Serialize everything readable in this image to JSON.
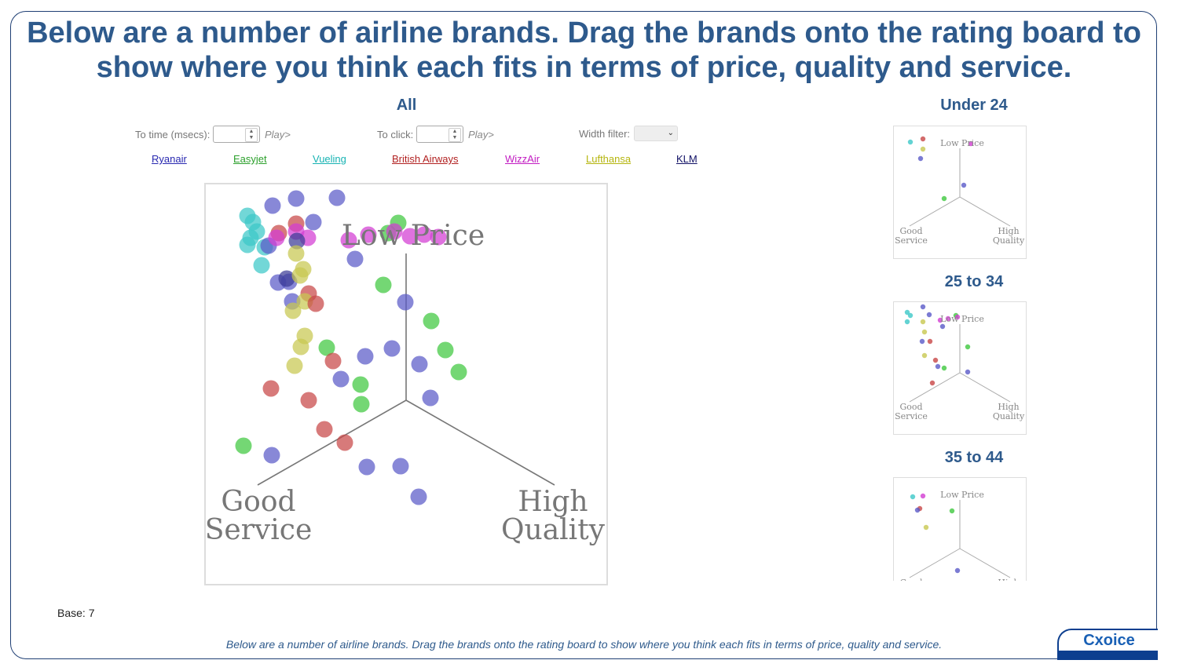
{
  "title": "Below are a number of airline brands. Drag the brands onto the rating board to show where you think each fits in terms of price, quality and service.",
  "main_section": {
    "heading": "All",
    "time_label": "To time (msecs):",
    "time_value": "",
    "click_label": "To click:",
    "click_value": "",
    "play_label": "Play>",
    "width_filter_label": "Width filter:",
    "width_filter_value": ""
  },
  "brands": [
    {
      "name": "Ryanair",
      "color": "#2828b0"
    },
    {
      "name": "Easyjet",
      "color": "#2ca02c"
    },
    {
      "name": "Vueling",
      "color": "#17b3b3"
    },
    {
      "name": "British Airways",
      "color": "#b22222"
    },
    {
      "name": "WizzAir",
      "color": "#c21cc2"
    },
    {
      "name": "Lufthansa",
      "color": "#b5b50e"
    },
    {
      "name": "KLM",
      "color": "#111166"
    }
  ],
  "axes": {
    "top": "Low Price",
    "left_line1": "Good",
    "left_line2": "Service",
    "right_line1": "High",
    "right_line2": "Quality"
  },
  "segments": [
    {
      "heading": "Under 24"
    },
    {
      "heading": "25 to 34"
    },
    {
      "heading": "35 to 44"
    }
  ],
  "base_label": "Base: 7",
  "footer_text": "Below are a number of airline brands. Drag the brands onto the rating board to show where you think each fits in terms of price, quality and service.",
  "logo_text": "Cxoice",
  "colors": {
    "title": "#2e5a8c",
    "frame": "#1f3f74",
    "dot_blue": "#5a5ac8",
    "dot_green": "#3ec83e",
    "dot_cyan": "#3cc8c8",
    "dot_red": "#c84646",
    "dot_magenta": "#d23cd2",
    "dot_yellow": "#c8c850",
    "dot_navy": "#3c3c96"
  }
}
